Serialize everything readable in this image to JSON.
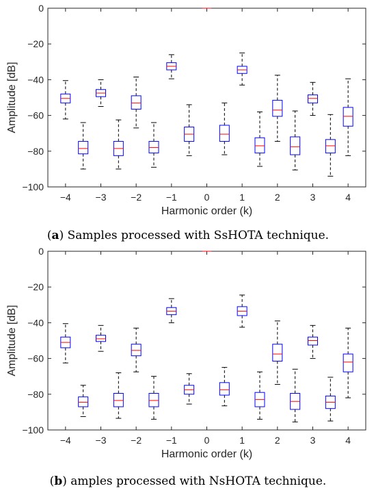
{
  "chart_data": [
    {
      "type": "box",
      "xlabel": "Harmonic order (k)",
      "ylabel": "Amplitude [dB]",
      "ylim": [
        -100,
        0
      ],
      "xlim": [
        -4.5,
        4.5
      ],
      "yticks": [
        0,
        -20,
        -40,
        -60,
        -80,
        -100
      ],
      "xticks": [
        -4,
        -3,
        -2,
        -1,
        0,
        1,
        2,
        3,
        4
      ],
      "xtick_labels": [
        "−4",
        "−3",
        "−2",
        "−1",
        "0",
        "1",
        "2",
        "3",
        "4"
      ],
      "ytick_labels": [
        "0",
        "−20",
        "−40",
        "−60",
        "−80",
        "−100"
      ],
      "grid": false,
      "box_color": "#0000ff",
      "median_color": "#ff0000",
      "whisker_color": "#000000",
      "boxes": [
        {
          "x": -4,
          "whislo": -62,
          "q1": -53,
          "med": -50.5,
          "q3": -48,
          "whishi": -40.5
        },
        {
          "x": -3.5,
          "whislo": -90,
          "q1": -81.5,
          "med": -78.5,
          "q3": -74.5,
          "whishi": -64
        },
        {
          "x": -3,
          "whislo": -55,
          "q1": -49.5,
          "med": -47.5,
          "q3": -45.5,
          "whishi": -40
        },
        {
          "x": -2.5,
          "whislo": -90,
          "q1": -82.5,
          "med": -78.5,
          "q3": -74.5,
          "whishi": -62.5
        },
        {
          "x": -2,
          "whislo": -67,
          "q1": -56.5,
          "med": -53,
          "q3": -49,
          "whishi": -38.5
        },
        {
          "x": -1.5,
          "whislo": -89,
          "q1": -81,
          "med": -78,
          "q3": -74.5,
          "whishi": -64
        },
        {
          "x": -1,
          "whislo": -39.5,
          "q1": -34.5,
          "med": -32.5,
          "q3": -30.5,
          "whishi": -26
        },
        {
          "x": -0.5,
          "whislo": -82.5,
          "q1": -74.5,
          "med": -70.5,
          "q3": -66.5,
          "whishi": -54
        },
        {
          "x": 0,
          "whislo": 0,
          "q1": 0,
          "med": 0,
          "q3": 0,
          "whishi": 0
        },
        {
          "x": 0.5,
          "whislo": -82,
          "q1": -74.5,
          "med": -70.5,
          "q3": -65.5,
          "whishi": -53
        },
        {
          "x": 1,
          "whislo": -43,
          "q1": -36.5,
          "med": -34.5,
          "q3": -32.5,
          "whishi": -25
        },
        {
          "x": 1.5,
          "whislo": -88.5,
          "q1": -81,
          "med": -77,
          "q3": -72.5,
          "whishi": -58
        },
        {
          "x": 2,
          "whislo": -74.5,
          "q1": -60.5,
          "med": -57,
          "q3": -51.5,
          "whishi": -37.5
        },
        {
          "x": 2.5,
          "whislo": -90.5,
          "q1": -82,
          "med": -77.5,
          "q3": -72,
          "whishi": -57.5
        },
        {
          "x": 3,
          "whislo": -60,
          "q1": -53,
          "med": -50.5,
          "q3": -48.5,
          "whishi": -41.5
        },
        {
          "x": 3.5,
          "whislo": -94,
          "q1": -81,
          "med": -77,
          "q3": -73.5,
          "whishi": -59.5
        },
        {
          "x": 4,
          "whislo": -82.5,
          "q1": -66,
          "med": -60.5,
          "q3": -55.5,
          "whishi": -39.5
        }
      ]
    },
    {
      "type": "box",
      "xlabel": "Harmonic order (k)",
      "ylabel": "Amplitude [dB]",
      "ylim": [
        -100,
        0
      ],
      "xlim": [
        -4.5,
        4.5
      ],
      "yticks": [
        0,
        -20,
        -40,
        -60,
        -80,
        -100
      ],
      "xticks": [
        -4,
        -3,
        -2,
        -1,
        0,
        1,
        2,
        3,
        4
      ],
      "xtick_labels": [
        "−4",
        "−3",
        "−2",
        "−1",
        "0",
        "1",
        "2",
        "3",
        "4"
      ],
      "ytick_labels": [
        "0",
        "−20",
        "−40",
        "−60",
        "−80",
        "−100"
      ],
      "grid": false,
      "box_color": "#0000ff",
      "median_color": "#ff0000",
      "whisker_color": "#000000",
      "boxes": [
        {
          "x": -4,
          "whislo": -62.5,
          "q1": -54,
          "med": -51,
          "q3": -48,
          "whishi": -40.5
        },
        {
          "x": -3.5,
          "whislo": -92.5,
          "q1": -87,
          "med": -84.5,
          "q3": -81.5,
          "whishi": -75
        },
        {
          "x": -3,
          "whislo": -56,
          "q1": -50.5,
          "med": -49,
          "q3": -47,
          "whishi": -41.5
        },
        {
          "x": -2.5,
          "whislo": -93.5,
          "q1": -87,
          "med": -83.5,
          "q3": -79.5,
          "whishi": -68
        },
        {
          "x": -2,
          "whislo": -67.5,
          "q1": -58.5,
          "med": -55.5,
          "q3": -52,
          "whishi": -43
        },
        {
          "x": -1.5,
          "whislo": -94,
          "q1": -87,
          "med": -83.5,
          "q3": -79.5,
          "whishi": -70
        },
        {
          "x": -1,
          "whislo": -40,
          "q1": -35.5,
          "med": -33.5,
          "q3": -31.5,
          "whishi": -26.5
        },
        {
          "x": -0.5,
          "whislo": -85.5,
          "q1": -80,
          "med": -77.5,
          "q3": -75,
          "whishi": -68.5
        },
        {
          "x": 0,
          "whislo": 0,
          "q1": 0,
          "med": 0,
          "q3": 0,
          "whishi": 0
        },
        {
          "x": 0.5,
          "whislo": -86.5,
          "q1": -80.5,
          "med": -77.5,
          "q3": -73.5,
          "whishi": -65
        },
        {
          "x": 1,
          "whislo": -42.5,
          "q1": -36,
          "med": -33.5,
          "q3": -31,
          "whishi": -24.5
        },
        {
          "x": 1.5,
          "whislo": -94,
          "q1": -87,
          "med": -83,
          "q3": -79,
          "whishi": -67.5
        },
        {
          "x": 2,
          "whislo": -74.5,
          "q1": -61.5,
          "med": -57.5,
          "q3": -52,
          "whishi": -39
        },
        {
          "x": 2.5,
          "whislo": -95.5,
          "q1": -88.5,
          "med": -84,
          "q3": -79.5,
          "whishi": -66
        },
        {
          "x": 3,
          "whislo": -60,
          "q1": -52.5,
          "med": -50,
          "q3": -48,
          "whishi": -41.5
        },
        {
          "x": 3.5,
          "whislo": -95,
          "q1": -88,
          "med": -84.5,
          "q3": -81,
          "whishi": -70.5
        },
        {
          "x": 4,
          "whislo": -82,
          "q1": -67.5,
          "med": -62,
          "q3": -57.5,
          "whishi": -43
        }
      ]
    }
  ],
  "captions": [
    {
      "letter": "a",
      "text": " Samples processed with SsHOTA technique."
    },
    {
      "letter": "b",
      "text": " amples processed with NsHOTA technique."
    }
  ]
}
